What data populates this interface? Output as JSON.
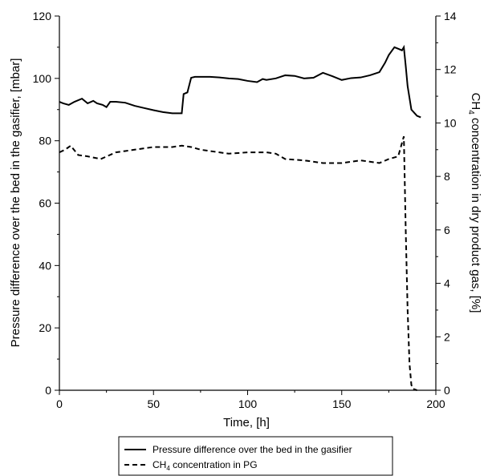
{
  "chart_data": {
    "type": "line",
    "xlabel": "Time, [h]",
    "ylabel_left": "Pressure difference over the bed in the gasifier, [mbar]",
    "ylabel_right_parts": [
      "CH",
      "4",
      " concentration in dry product gas, [%]"
    ],
    "xlim": [
      0,
      200
    ],
    "ylim_left": [
      0,
      120
    ],
    "ylim_right": [
      0,
      14
    ],
    "x_ticks": [
      0,
      50,
      100,
      150,
      200
    ],
    "y_left_ticks": [
      0,
      20,
      40,
      60,
      80,
      100,
      120
    ],
    "y_right_ticks": [
      0,
      2,
      4,
      6,
      8,
      10,
      12,
      14
    ],
    "grid": false,
    "legend_placement": "bottom",
    "series": [
      {
        "id": "pressure",
        "legend_label_parts": [
          "Pressure difference over the bed in the gasifier"
        ],
        "axis": "left",
        "style": "solid",
        "x": [
          0,
          2,
          5,
          8,
          12,
          15,
          18,
          20,
          23,
          25,
          27,
          30,
          35,
          40,
          45,
          50,
          55,
          60,
          65,
          66,
          68,
          70,
          72,
          80,
          85,
          90,
          95,
          100,
          105,
          108,
          110,
          115,
          120,
          125,
          130,
          135,
          140,
          145,
          150,
          155,
          160,
          165,
          170,
          173,
          175,
          178,
          180,
          182,
          183,
          184,
          185,
          187,
          190,
          192
        ],
        "values": [
          92.5,
          92,
          91.5,
          92.5,
          93.5,
          92,
          92.8,
          92,
          91.5,
          90.8,
          92.5,
          92.5,
          92.2,
          91.2,
          90.5,
          89.8,
          89.2,
          88.8,
          88.8,
          95,
          95.5,
          100.2,
          100.5,
          100.5,
          100.3,
          100,
          99.8,
          99.2,
          98.8,
          99.8,
          99.5,
          100,
          101,
          100.8,
          100,
          100.2,
          101.8,
          100.7,
          99.5,
          100.1,
          100.3,
          101,
          102,
          105,
          107.5,
          110,
          109.5,
          109,
          110,
          104,
          97.5,
          90,
          88,
          87.5
        ]
      },
      {
        "id": "ch4",
        "legend_label_parts": [
          "CH",
          "4",
          " concentration in PG"
        ],
        "axis": "right",
        "style": "dashed",
        "x": [
          0,
          3,
          6,
          10,
          15,
          22,
          30,
          35,
          40,
          45,
          50,
          55,
          60,
          65,
          70,
          75,
          80,
          90,
          100,
          110,
          115,
          120,
          130,
          140,
          150,
          160,
          170,
          175,
          180,
          183,
          184,
          185,
          186,
          187,
          188,
          190
        ],
        "values": [
          8.9,
          9.0,
          9.15,
          8.8,
          8.75,
          8.65,
          8.9,
          8.95,
          9.0,
          9.05,
          9.1,
          9.1,
          9.1,
          9.15,
          9.1,
          9.0,
          8.95,
          8.85,
          8.9,
          8.9,
          8.85,
          8.65,
          8.6,
          8.5,
          8.5,
          8.6,
          8.5,
          8.65,
          8.75,
          9.5,
          6.0,
          3.0,
          1.0,
          0.2,
          0.05,
          0.0
        ]
      }
    ]
  }
}
